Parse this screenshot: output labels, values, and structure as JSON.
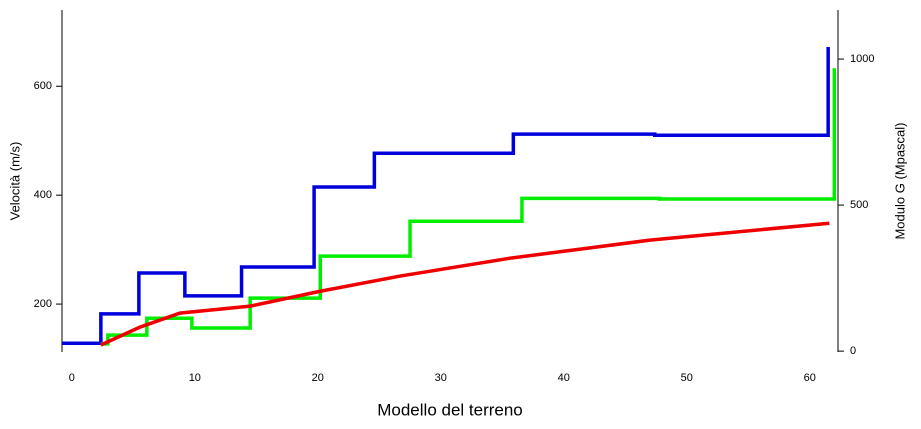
{
  "chart_data": {
    "type": "line",
    "x_label": "Modello del terreno",
    "y_label": "Velocità (m/s)",
    "y2_label": "Modulo G (Mpascal)",
    "xlim": [
      -0.8,
      62.3
    ],
    "xticks": [
      0,
      10,
      20,
      30,
      40,
      50,
      60
    ],
    "ylim": [
      112,
      740
    ],
    "yticks": [
      200,
      400,
      600
    ],
    "y2lim": [
      -3,
      1168
    ],
    "y2ticks": [
      0,
      500,
      1000
    ],
    "series": [
      {
        "color": "#0000dd",
        "x": [
          -0.8,
          2.36,
          2.36,
          5.45,
          5.45,
          9.19,
          9.19,
          13.8,
          13.8,
          19.7,
          19.7,
          24.6,
          24.6,
          35.9,
          35.9,
          47.4,
          47.4,
          61.5,
          61.5
        ],
        "values": [
          128,
          128,
          182,
          182,
          257,
          257,
          215,
          215,
          268,
          268,
          415,
          415,
          477,
          477,
          512,
          512,
          510,
          510,
          672
        ]
      },
      {
        "color": "#00ee00",
        "x": [
          2.36,
          2.93,
          2.93,
          6.1,
          6.1,
          9.76,
          9.76,
          14.5,
          14.5,
          20.2,
          20.2,
          27.5,
          27.5,
          36.6,
          36.6,
          47.8,
          47.8,
          62.0,
          62.0
        ],
        "values": [
          127,
          127,
          143,
          143,
          174,
          174,
          156,
          156,
          211,
          211,
          288,
          288,
          352,
          352,
          394,
          394,
          393,
          393,
          633
        ]
      },
      {
        "color": "#ee0000",
        "axis": "y2",
        "x": [
          2.36,
          5.53,
          8.78,
          14.5,
          20.2,
          26.7,
          35.6,
          47.0,
          61.6
        ],
        "values": [
          21,
          82,
          130,
          154,
          205,
          257,
          318,
          380,
          438
        ]
      }
    ]
  }
}
